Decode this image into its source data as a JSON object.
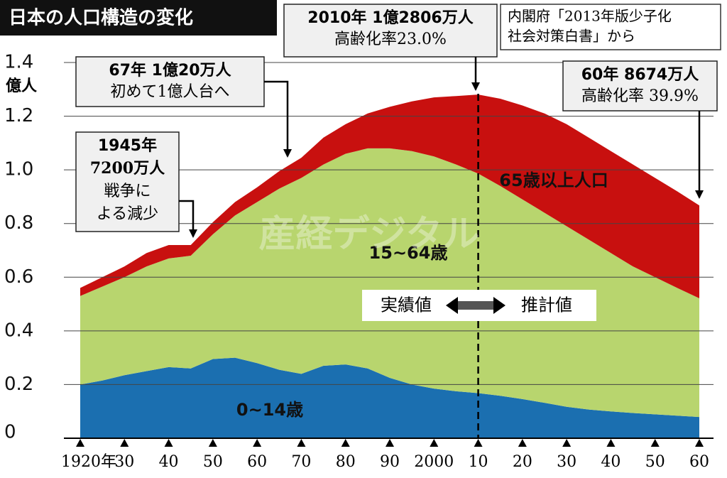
{
  "chart_data": {
    "type": "stacked_area",
    "title": "日本の人口構造の変化",
    "source_lines": [
      "内閣府「2013年版少子化",
      "社会対策白書」から"
    ],
    "y_unit": "億人",
    "x": [
      1920,
      1925,
      1930,
      1935,
      1940,
      1945,
      1950,
      1955,
      1960,
      1965,
      1970,
      1975,
      1980,
      1985,
      1990,
      1995,
      2000,
      2005,
      2010,
      2015,
      2020,
      2025,
      2030,
      2035,
      2040,
      2045,
      2050,
      2055,
      2060
    ],
    "series": [
      {
        "name": "0~14歳",
        "color": "#1b6fb0",
        "values": [
          0.2,
          0.215,
          0.235,
          0.25,
          0.265,
          0.26,
          0.295,
          0.3,
          0.28,
          0.255,
          0.24,
          0.27,
          0.275,
          0.26,
          0.225,
          0.2,
          0.185,
          0.175,
          0.168,
          0.158,
          0.146,
          0.132,
          0.117,
          0.107,
          0.1,
          0.094,
          0.089,
          0.084,
          0.079
        ]
      },
      {
        "name": "15~64歳",
        "color": "#b8d56e",
        "values": [
          0.33,
          0.35,
          0.365,
          0.39,
          0.405,
          0.42,
          0.465,
          0.53,
          0.6,
          0.675,
          0.73,
          0.75,
          0.785,
          0.82,
          0.855,
          0.87,
          0.865,
          0.845,
          0.818,
          0.782,
          0.744,
          0.708,
          0.673,
          0.633,
          0.59,
          0.546,
          0.511,
          0.476,
          0.4424
        ]
      },
      {
        "name": "65歳以上人口",
        "color": "#c8100f",
        "values": [
          0.03,
          0.035,
          0.04,
          0.05,
          0.05,
          0.04,
          0.045,
          0.05,
          0.055,
          0.065,
          0.075,
          0.1,
          0.11,
          0.13,
          0.155,
          0.185,
          0.22,
          0.255,
          0.2946,
          0.325,
          0.35,
          0.37,
          0.38,
          0.38,
          0.38,
          0.38,
          0.37,
          0.36,
          0.346
        ]
      }
    ],
    "xlim": [
      1920,
      2060
    ],
    "xticks": [
      {
        "value": 1920,
        "label": "1920年"
      },
      {
        "value": 1930,
        "label": "30"
      },
      {
        "value": 1940,
        "label": "40"
      },
      {
        "value": 1950,
        "label": "50"
      },
      {
        "value": 1960,
        "label": "60"
      },
      {
        "value": 1970,
        "label": "70"
      },
      {
        "value": 1980,
        "label": "80"
      },
      {
        "value": 1990,
        "label": "90"
      },
      2000,
      {
        "value": 2010,
        "label": "10"
      },
      {
        "value": 2020,
        "label": "20"
      },
      {
        "value": 2030,
        "label": "30"
      },
      {
        "value": 2040,
        "label": "40"
      },
      {
        "value": 2050,
        "label": "50"
      },
      {
        "value": 2060,
        "label": "60"
      }
    ],
    "ylim": [
      0,
      1.4
    ],
    "yticks": [
      0,
      0.2,
      0.4,
      0.6,
      0.8,
      {
        "value": 1,
        "label": "1.0"
      },
      1.2,
      1.4
    ],
    "grid": true,
    "actual_label": "実績値",
    "forecast_label": "推計値",
    "watermark": "産経デジタル",
    "annotations": [
      {
        "lines": [
          "2010年 1億2806万人",
          "高齢化率23.0%"
        ]
      },
      {
        "lines": [
          "67年 1億20万人",
          "初めて1億人台へ"
        ]
      },
      {
        "lines": [
          "1945年",
          "7200万人",
          "戦争に",
          "よる減少"
        ]
      },
      {
        "lines": [
          "60年 8674万人",
          "高齢化率 39.9%"
        ]
      }
    ]
  }
}
